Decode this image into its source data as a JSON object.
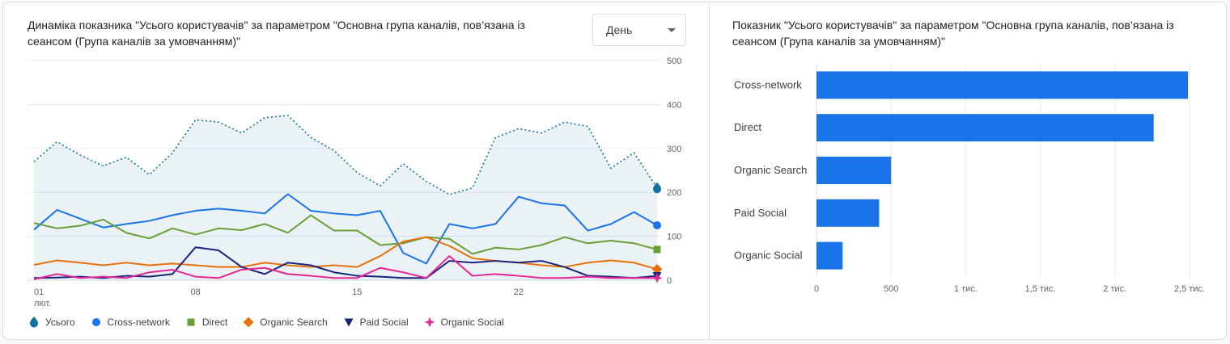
{
  "left_panel": {
    "title": "Динаміка показника \"Усього користувачів\" за параметром \"Основна група каналів, пов’язана із сеансом (Група каналів за умовчанням)\"",
    "dropdown_value": "День"
  },
  "right_panel": {
    "title": "Показник \"Усього користувачів\" за параметром \"Основна група каналів, пов’язана із сеансом (Група каналів за умовчанням)\""
  },
  "colors": {
    "accent_blue": "#1a73e8",
    "grid": "#e8eaed",
    "axis_line": "#dadce0",
    "axis_text": "#5f6368",
    "title_text": "#202124"
  },
  "chart_data": [
    {
      "type": "line",
      "title": "Динаміка показника \"Усього користувачів\"",
      "x": [
        1,
        2,
        3,
        4,
        5,
        6,
        7,
        8,
        9,
        10,
        11,
        12,
        13,
        14,
        15,
        16,
        17,
        18,
        19,
        20,
        21,
        22,
        23,
        24,
        25,
        26,
        27,
        28
      ],
      "x_ticks": [
        {
          "day": 1,
          "label": "01",
          "sublabel": "лют."
        },
        {
          "day": 8,
          "label": "08"
        },
        {
          "day": 15,
          "label": "15"
        },
        {
          "day": 22,
          "label": "22"
        }
      ],
      "ylim": [
        0,
        500
      ],
      "y_ticks": [
        0,
        100,
        200,
        300,
        400,
        500
      ],
      "grid": true,
      "legend_position": "bottom",
      "series": [
        {
          "name": "Усього",
          "color": "#12739e",
          "style": "dotted",
          "fill": true,
          "marker": "drop",
          "values": [
            270,
            315,
            285,
            260,
            280,
            240,
            290,
            365,
            360,
            335,
            370,
            375,
            325,
            295,
            245,
            215,
            265,
            225,
            195,
            210,
            325,
            345,
            335,
            360,
            350,
            255,
            290,
            210
          ]
        },
        {
          "name": "Cross-network",
          "color": "#1a73e8",
          "style": "solid",
          "fill": false,
          "marker": "circle",
          "values": [
            115,
            160,
            140,
            120,
            128,
            135,
            148,
            158,
            163,
            158,
            152,
            196,
            158,
            152,
            148,
            158,
            62,
            38,
            128,
            118,
            128,
            190,
            175,
            170,
            113,
            128,
            155,
            125
          ]
        },
        {
          "name": "Direct",
          "color": "#689f38",
          "style": "solid",
          "fill": false,
          "marker": "square",
          "values": [
            130,
            118,
            124,
            138,
            108,
            95,
            118,
            104,
            118,
            114,
            128,
            108,
            148,
            113,
            113,
            80,
            84,
            98,
            94,
            60,
            74,
            70,
            80,
            98,
            84,
            90,
            84,
            70
          ]
        },
        {
          "name": "Organic Search",
          "color": "#e8710a",
          "style": "solid",
          "fill": false,
          "marker": "diamond",
          "values": [
            35,
            45,
            40,
            34,
            40,
            34,
            38,
            34,
            30,
            30,
            40,
            34,
            30,
            34,
            30,
            55,
            88,
            98,
            78,
            50,
            44,
            40,
            34,
            30,
            40,
            45,
            40,
            25
          ]
        },
        {
          "name": "Paid Social",
          "color": "#1a237e",
          "style": "solid",
          "fill": false,
          "marker": "triangle-down",
          "values": [
            5,
            6,
            8,
            5,
            10,
            8,
            14,
            75,
            68,
            30,
            14,
            40,
            34,
            18,
            10,
            8,
            5,
            5,
            44,
            40,
            44,
            40,
            44,
            30,
            10,
            8,
            5,
            10
          ]
        },
        {
          "name": "Organic Social",
          "color": "#e52592",
          "style": "solid",
          "fill": false,
          "marker": "star4",
          "values": [
            2,
            14,
            5,
            8,
            5,
            18,
            24,
            8,
            5,
            24,
            28,
            14,
            10,
            5,
            5,
            28,
            18,
            5,
            55,
            10,
            14,
            10,
            5,
            5,
            8,
            5,
            5,
            5
          ]
        }
      ]
    },
    {
      "type": "bar",
      "orientation": "horizontal",
      "title": "Показник \"Усього користувачів\"",
      "categories": [
        "Cross-network",
        "Direct",
        "Organic Search",
        "Paid Social",
        "Organic Social"
      ],
      "values": [
        2490,
        2260,
        500,
        420,
        175
      ],
      "xlim": [
        0,
        2560
      ],
      "x_ticks": [
        {
          "value": 0,
          "label": "0"
        },
        {
          "value": 500,
          "label": "500"
        },
        {
          "value": 1000,
          "label": "1 тис."
        },
        {
          "value": 1500,
          "label": "1,5 тис."
        },
        {
          "value": 2000,
          "label": "2 тис."
        },
        {
          "value": 2500,
          "label": "2,5 тис."
        }
      ],
      "bar_color": "#1a73e8",
      "grid": true
    }
  ]
}
